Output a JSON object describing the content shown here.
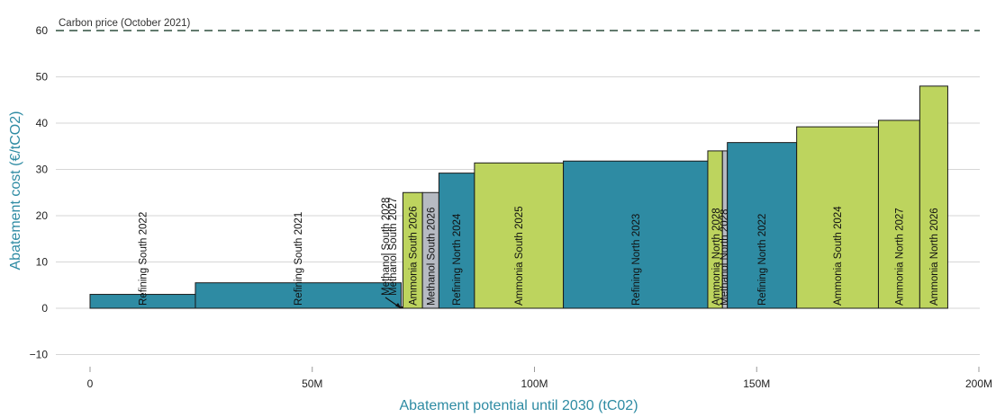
{
  "chart_data": {
    "type": "bar",
    "subtype": "marginal-abatement-cost-curve",
    "xlabel": "Abatement potential until 2030 (tC02)",
    "ylabel": "Abatement cost (€/tCO2)",
    "xlim": [
      -8000000,
      200000000
    ],
    "ylim": [
      -13,
      62
    ],
    "x_ticks": [
      0,
      50000000,
      100000000,
      150000000,
      200000000
    ],
    "x_tick_labels": [
      "0",
      "50M",
      "100M",
      "150M",
      "200M"
    ],
    "y_ticks": [
      -10,
      0,
      10,
      20,
      30,
      40,
      50,
      60
    ],
    "y_tick_labels": [
      "−10",
      "0",
      "10",
      "20",
      "30",
      "40",
      "50",
      "60"
    ],
    "grid": true,
    "reference_line": {
      "label": "Carbon price (October 2021)",
      "value": 60,
      "color": "#2f4f3f"
    },
    "colors": {
      "Refining": "#2e8ba3",
      "Ammonia": "#bdd45e",
      "Methanol": "#b6bac2"
    },
    "bars": [
      {
        "label": "Refining South 2022",
        "sector": "Refining",
        "x_start": 0,
        "x_end": 23700000,
        "value": 3
      },
      {
        "label": "Refining South 2021",
        "sector": "Refining",
        "x_start": 23700000,
        "x_end": 70000000,
        "value": 5.5
      },
      {
        "label": "Methanol South 2028",
        "sector": "Methanol",
        "x_start": 70000000,
        "x_end": 70200000,
        "value": 0.3
      },
      {
        "label": "Methanol South 2027",
        "sector": "Methanol",
        "x_start": 70200000,
        "x_end": 70400000,
        "value": 0.3
      },
      {
        "label": "Ammonia South 2026",
        "sector": "Ammonia",
        "x_start": 70400000,
        "x_end": 74800000,
        "value": 25
      },
      {
        "label": "Methanol South 2026",
        "sector": "Methanol",
        "x_start": 74800000,
        "x_end": 78500000,
        "value": 25
      },
      {
        "label": "Refining North 2024",
        "sector": "Refining",
        "x_start": 78500000,
        "x_end": 86500000,
        "value": 29.2
      },
      {
        "label": "Ammonia South 2025",
        "sector": "Ammonia",
        "x_start": 86500000,
        "x_end": 106500000,
        "value": 31.4
      },
      {
        "label": "Refining North 2023",
        "sector": "Refining",
        "x_start": 106500000,
        "x_end": 139000000,
        "value": 31.8
      },
      {
        "label": "Ammonia North 2028",
        "sector": "Ammonia",
        "x_start": 139000000,
        "x_end": 142300000,
        "value": 34
      },
      {
        "label": "Methanol North 2028",
        "sector": "Methanol",
        "x_start": 142300000,
        "x_end": 143400000,
        "value": 34
      },
      {
        "label": "Refining North 2022",
        "sector": "Refining",
        "x_start": 143400000,
        "x_end": 159000000,
        "value": 35.8
      },
      {
        "label": "Ammonia South 2024",
        "sector": "Ammonia",
        "x_start": 159000000,
        "x_end": 177400000,
        "value": 39.2
      },
      {
        "label": "Ammonia North 2027",
        "sector": "Ammonia",
        "x_start": 177400000,
        "x_end": 186700000,
        "value": 40.6
      },
      {
        "label": "Ammonia North 2026",
        "sector": "Ammonia",
        "x_start": 186700000,
        "x_end": 193000000,
        "value": 48
      }
    ]
  }
}
